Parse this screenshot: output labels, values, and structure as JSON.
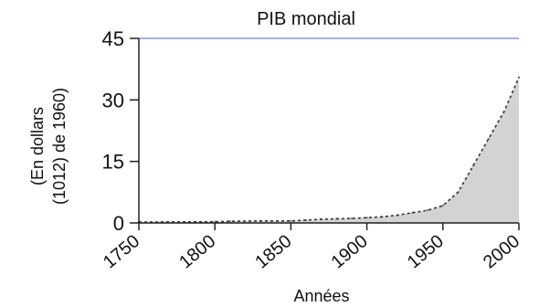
{
  "chart_data": {
    "type": "area",
    "title": "PIB mondial",
    "xlabel": "Années",
    "ylabel_lines": [
      "(En dollars",
      "(1012) de 1960)"
    ],
    "x": [
      1750,
      1800,
      1810,
      1830,
      1850,
      1860,
      1870,
      1880,
      1890,
      1900,
      1910,
      1920,
      1930,
      1940,
      1950,
      1960,
      1970,
      1980,
      1990,
      2000
    ],
    "values": [
      0.2,
      0.3,
      0.4,
      0.5,
      0.5,
      0.7,
      0.9,
      1.0,
      1.1,
      1.3,
      1.5,
      1.9,
      2.5,
      3.1,
      4.2,
      7.5,
      14.0,
      20.5,
      27.0,
      35.5
    ],
    "xticks": [
      1750,
      1800,
      1850,
      1900,
      1950,
      2000
    ],
    "yticks": [
      0,
      15,
      30,
      45
    ],
    "xlim": [
      1750,
      2000
    ],
    "ylim": [
      0,
      45
    ],
    "grid": false,
    "colors": {
      "fill": "#d3d3d3",
      "line": "#333333",
      "axis": "#222222",
      "top_line": "#a9b1e0"
    }
  }
}
